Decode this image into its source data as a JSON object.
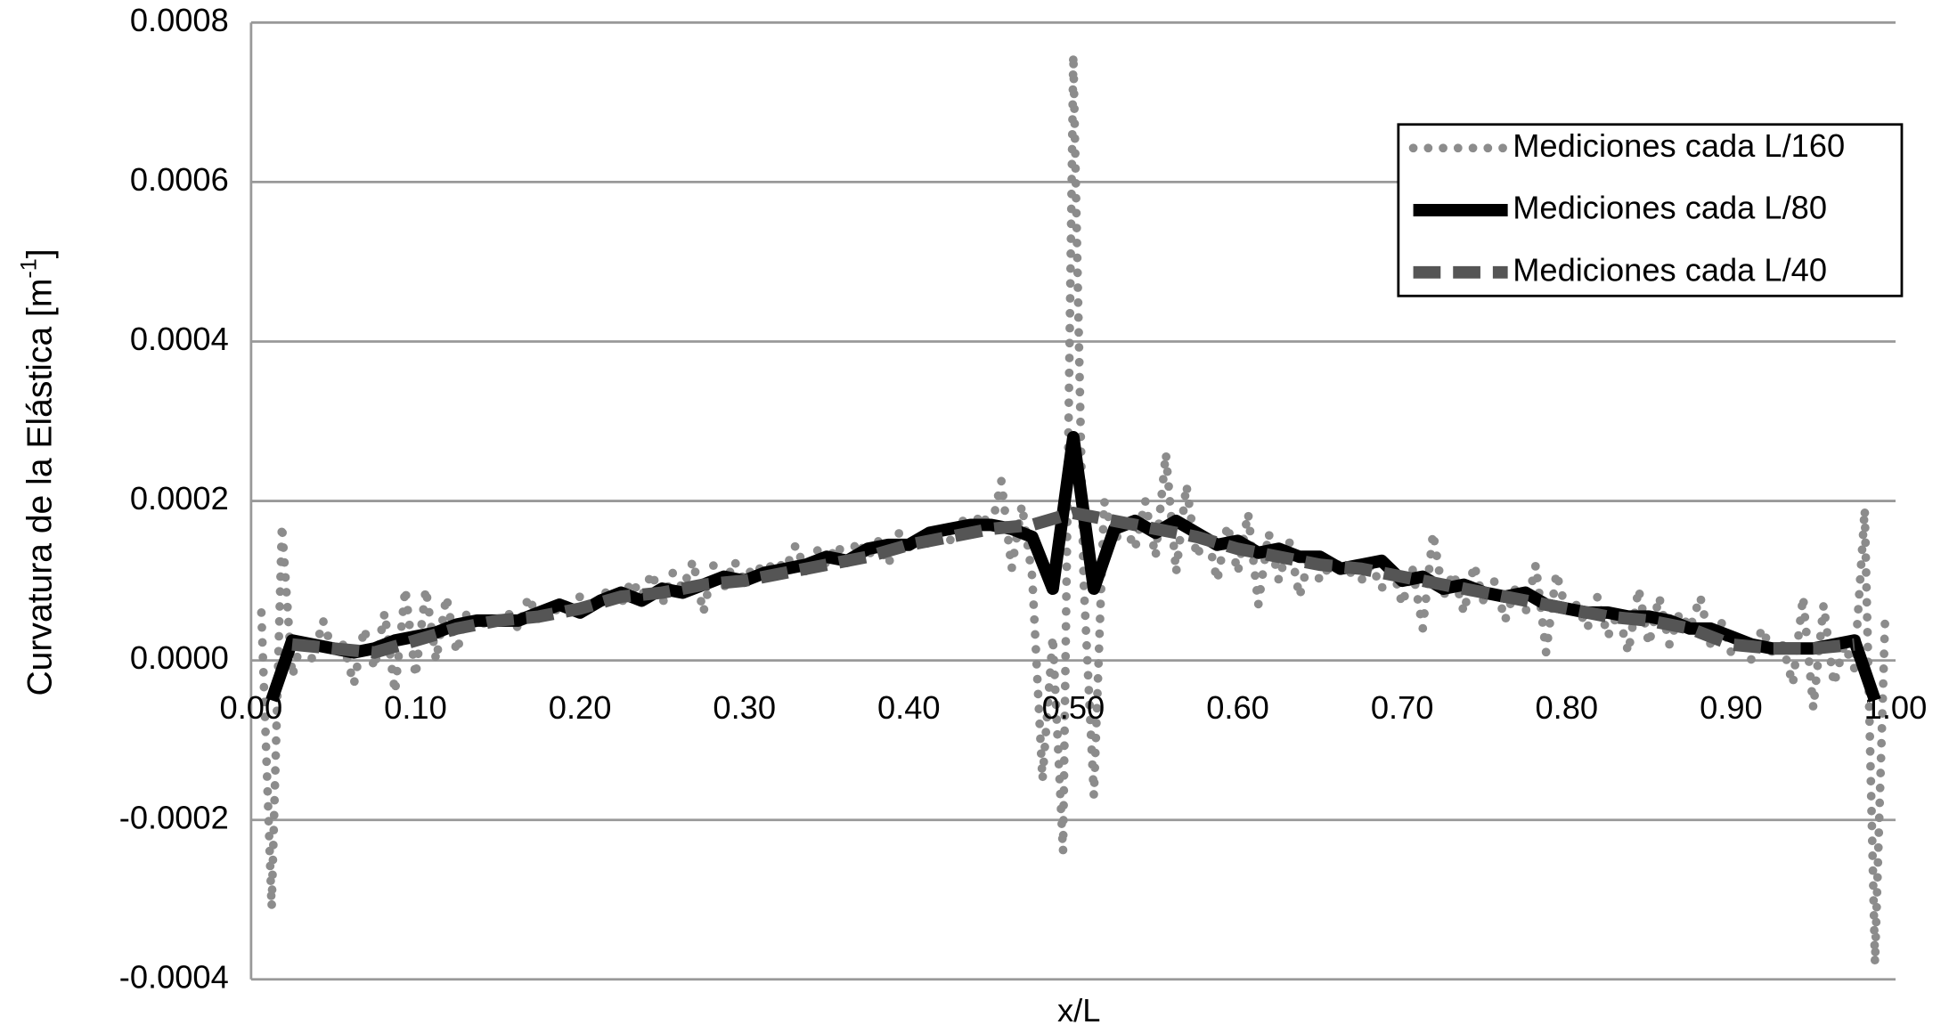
{
  "chart_data": {
    "type": "line",
    "x_label": "x/L",
    "y_label": {
      "text": "Curvatura de la Elástica [m",
      "sup": "-1",
      "end": "]"
    },
    "xlim": [
      0,
      1
    ],
    "ylim": [
      -0.0004,
      0.0008
    ],
    "xticks": [
      {
        "value": 0,
        "label": "0.00"
      },
      {
        "value": 0.1,
        "label": "0.10"
      },
      {
        "value": 0.2,
        "label": "0.20"
      },
      {
        "value": 0.3,
        "label": "0.30"
      },
      {
        "value": 0.4,
        "label": "0.40"
      },
      {
        "value": 0.5,
        "label": "0.50"
      },
      {
        "value": 0.6,
        "label": "0.60"
      },
      {
        "value": 0.7,
        "label": "0.70"
      },
      {
        "value": 0.8,
        "label": "0.80"
      },
      {
        "value": 0.9,
        "label": "0.90"
      },
      {
        "value": 1,
        "label": "1.00"
      }
    ],
    "yticks": [
      {
        "value": -0.0004,
        "label": "-0.0004"
      },
      {
        "value": -0.0002,
        "label": "-0.0002"
      },
      {
        "value": 0,
        "label": "0.0000"
      },
      {
        "value": 0.0002,
        "label": "0.0002"
      },
      {
        "value": 0.0004,
        "label": "0.0004"
      },
      {
        "value": 0.0006,
        "label": "0.0006"
      },
      {
        "value": 0.0008,
        "label": "0.0008"
      }
    ],
    "grid": true,
    "legend": "top-right",
    "series": [
      {
        "name": "Mediciones cada L/160",
        "color": "#8c8c8c",
        "style": "dotted",
        "x": [
          0.00625,
          0.0125,
          0.01875,
          0.025,
          0.03125,
          0.0375,
          0.04375,
          0.05,
          0.05625,
          0.0625,
          0.06875,
          0.075,
          0.08125,
          0.0875,
          0.09375,
          0.1,
          0.10625,
          0.1125,
          0.11875,
          0.125,
          0.13125,
          0.1375,
          0.14375,
          0.15,
          0.15625,
          0.1625,
          0.16875,
          0.175,
          0.18125,
          0.1875,
          0.19375,
          0.2,
          0.20625,
          0.2125,
          0.21875,
          0.225,
          0.23125,
          0.2375,
          0.24375,
          0.25,
          0.25625,
          0.2625,
          0.26875,
          0.275,
          0.28125,
          0.2875,
          0.29375,
          0.3,
          0.30625,
          0.3125,
          0.31875,
          0.325,
          0.33125,
          0.3375,
          0.34375,
          0.35,
          0.35625,
          0.3625,
          0.36875,
          0.375,
          0.38125,
          0.3875,
          0.39375,
          0.4,
          0.40625,
          0.4125,
          0.41875,
          0.425,
          0.43125,
          0.4375,
          0.44375,
          0.45,
          0.45625,
          0.4625,
          0.46875,
          0.475,
          0.48125,
          0.4875,
          0.49375,
          0.5,
          0.50625,
          0.5125,
          0.51875,
          0.525,
          0.53125,
          0.5375,
          0.54375,
          0.55,
          0.55625,
          0.5625,
          0.56875,
          0.575,
          0.58125,
          0.5875,
          0.59375,
          0.6,
          0.60625,
          0.6125,
          0.61875,
          0.625,
          0.63125,
          0.6375,
          0.64375,
          0.65,
          0.65625,
          0.6625,
          0.66875,
          0.675,
          0.68125,
          0.6875,
          0.69375,
          0.7,
          0.70625,
          0.7125,
          0.71875,
          0.725,
          0.73125,
          0.7375,
          0.74375,
          0.75,
          0.75625,
          0.7625,
          0.76875,
          0.775,
          0.78125,
          0.7875,
          0.79375,
          0.8,
          0.80625,
          0.8125,
          0.81875,
          0.825,
          0.83125,
          0.8375,
          0.84375,
          0.85,
          0.85625,
          0.8625,
          0.86875,
          0.875,
          0.88125,
          0.8875,
          0.89375,
          0.9,
          0.90625,
          0.9125,
          0.91875,
          0.925,
          0.93125,
          0.9375,
          0.94375,
          0.95,
          0.95625,
          0.9625,
          0.96875,
          0.975,
          0.98125,
          0.9875,
          0.99375
        ],
        "values": [
          6e-05,
          -0.00031,
          0.00017,
          -2e-05,
          3e-05,
          0,
          5e-05,
          1e-05,
          2e-05,
          -3e-05,
          4e-05,
          -1e-05,
          6e-05,
          -4e-05,
          9e-05,
          -2e-05,
          9e-05,
          0,
          8e-05,
          1e-05,
          6e-05,
          4e-05,
          5e-05,
          5e-05,
          6e-05,
          4e-05,
          8e-05,
          5e-05,
          7e-05,
          6e-05,
          7e-05,
          8e-05,
          6e-05,
          8e-05,
          9e-05,
          7e-05,
          0.0001,
          8e-05,
          0.00011,
          7e-05,
          0.00011,
          9e-05,
          0.000125,
          6e-05,
          0.00012,
          9e-05,
          0.000125,
          0.0001,
          0.00012,
          0.00011,
          0.000125,
          0.000115,
          0.000145,
          0.00011,
          0.00014,
          0.00012,
          0.000145,
          0.000125,
          0.00015,
          0.00013,
          0.00015,
          0.00012,
          0.00016,
          0.00014,
          0.000155,
          0.000145,
          0.00017,
          0.00015,
          0.00018,
          0.00016,
          0.000185,
          0.000165,
          0.000225,
          0.000115,
          0.000195,
          0.000105,
          -0.00015,
          3e-05,
          -0.00024,
          0.00076,
          0.0001,
          -0.00017,
          0.0002,
          0.00015,
          0.00017,
          0.00014,
          0.0002,
          0.00013,
          0.00026,
          0.00011,
          0.00022,
          0.00013,
          0.00016,
          0.0001,
          0.00017,
          0.00011,
          0.000185,
          7e-05,
          0.00016,
          0.0001,
          0.00015,
          8e-05,
          0.00013,
          0.0001,
          0.00012,
          0.00012,
          0.00011,
          0.0001,
          0.00012,
          9e-05,
          0.00012,
          7e-05,
          0.000115,
          4e-05,
          0.00016,
          8e-05,
          0.00011,
          6e-05,
          0.00012,
          7e-05,
          0.0001,
          5e-05,
          9e-05,
          6e-05,
          0.00012,
          1e-05,
          0.00011,
          6e-05,
          7e-05,
          4e-05,
          8e-05,
          3e-05,
          6e-05,
          1e-05,
          9e-05,
          2e-05,
          8e-05,
          2e-05,
          6e-05,
          4e-05,
          8e-05,
          2e-05,
          5e-05,
          1e-05,
          3e-05,
          0,
          4e-05,
          1e-05,
          2e-05,
          -3e-05,
          8e-05,
          -6e-05,
          7e-05,
          -3e-05,
          2e-05,
          -1e-05,
          0.00019,
          -0.00038,
          6e-05
        ]
      },
      {
        "name": "Mediciones cada L/80",
        "color": "#000000",
        "style": "solid",
        "x": [
          0.0125,
          0.025,
          0.0375,
          0.05,
          0.0625,
          0.075,
          0.0875,
          0.1,
          0.1125,
          0.125,
          0.1375,
          0.15,
          0.1625,
          0.175,
          0.1875,
          0.2,
          0.2125,
          0.225,
          0.2375,
          0.25,
          0.2625,
          0.275,
          0.2875,
          0.3,
          0.3125,
          0.325,
          0.3375,
          0.35,
          0.3625,
          0.375,
          0.3875,
          0.4,
          0.4125,
          0.425,
          0.4375,
          0.45,
          0.4625,
          0.475,
          0.4875,
          0.5,
          0.5125,
          0.525,
          0.5375,
          0.55,
          0.5625,
          0.575,
          0.5875,
          0.6,
          0.6125,
          0.625,
          0.6375,
          0.65,
          0.6625,
          0.675,
          0.6875,
          0.7,
          0.7125,
          0.725,
          0.7375,
          0.75,
          0.7625,
          0.775,
          0.7875,
          0.8,
          0.8125,
          0.825,
          0.8375,
          0.85,
          0.8625,
          0.875,
          0.8875,
          0.9,
          0.9125,
          0.925,
          0.9375,
          0.95,
          0.9625,
          0.975,
          0.9875
        ],
        "values": [
          -5e-05,
          2.5e-05,
          2e-05,
          1.5e-05,
          1e-05,
          1.5e-05,
          2.5e-05,
          3e-05,
          3.5e-05,
          4.5e-05,
          5e-05,
          5e-05,
          5e-05,
          6e-05,
          7e-05,
          6e-05,
          7.5e-05,
          8.5e-05,
          7.5e-05,
          9e-05,
          8.5e-05,
          9.5e-05,
          0.000105,
          0.0001,
          0.00011,
          0.000115,
          0.00012,
          0.00013,
          0.000125,
          0.00014,
          0.000145,
          0.000145,
          0.00016,
          0.000165,
          0.00017,
          0.00017,
          0.000165,
          0.000155,
          9e-05,
          0.00028,
          9e-05,
          0.000165,
          0.000175,
          0.00016,
          0.000175,
          0.00016,
          0.000145,
          0.00015,
          0.000135,
          0.00014,
          0.00013,
          0.00013,
          0.000115,
          0.00012,
          0.000125,
          0.0001,
          0.000105,
          9e-05,
          9.5e-05,
          8.5e-05,
          8e-05,
          8.5e-05,
          7e-05,
          6.5e-05,
          6e-05,
          6e-05,
          5.5e-05,
          5.5e-05,
          5e-05,
          4e-05,
          4e-05,
          3e-05,
          2e-05,
          1.5e-05,
          1.5e-05,
          1.5e-05,
          2e-05,
          2.5e-05,
          -5e-05
        ]
      },
      {
        "name": "Mediciones cada L/40",
        "color": "#555555",
        "style": "dashed",
        "x": [
          0.025,
          0.05,
          0.075,
          0.1,
          0.125,
          0.15,
          0.175,
          0.2,
          0.225,
          0.25,
          0.275,
          0.3,
          0.325,
          0.35,
          0.375,
          0.4,
          0.425,
          0.45,
          0.475,
          0.5,
          0.525,
          0.55,
          0.575,
          0.6,
          0.625,
          0.65,
          0.675,
          0.7,
          0.725,
          0.75,
          0.775,
          0.8,
          0.825,
          0.85,
          0.875,
          0.9,
          0.925,
          0.95,
          0.975
        ],
        "values": [
          2e-05,
          1.5e-05,
          1e-05,
          2.5e-05,
          4e-05,
          5e-05,
          5.5e-05,
          6.5e-05,
          8e-05,
          8.5e-05,
          9.5e-05,
          0.0001,
          0.00011,
          0.00012,
          0.00013,
          0.000145,
          0.000155,
          0.000165,
          0.00017,
          0.000185,
          0.000175,
          0.000165,
          0.000155,
          0.00014,
          0.00013,
          0.00012,
          0.000115,
          0.000105,
          9.5e-05,
          8.5e-05,
          7.5e-05,
          6.5e-05,
          5.5e-05,
          5e-05,
          4e-05,
          2e-05,
          1.5e-05,
          1.5e-05,
          2e-05
        ]
      }
    ]
  }
}
